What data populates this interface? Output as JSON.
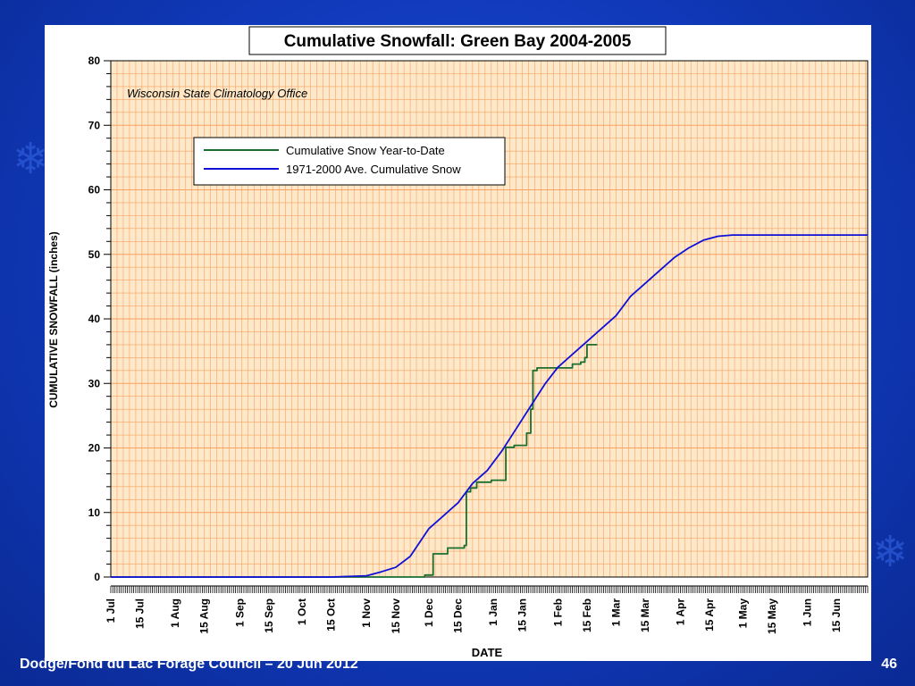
{
  "footer": {
    "text": "Dodge/Fond du Lac Forage Council – 20 Jun 2012",
    "page_number": "46"
  },
  "chart_data": {
    "type": "line",
    "title": "Cumulative Snowfall: Green Bay 2004-2005",
    "subtitle": "Wisconsin State Climatology Office",
    "xlabel": "DATE",
    "ylabel": "CUMULATIVE SNOWFALL (inches)",
    "ylim": [
      0,
      80
    ],
    "yticks": [
      0,
      10,
      20,
      30,
      40,
      50,
      60,
      70,
      80
    ],
    "xlim": [
      "2004-07-01",
      "2005-06-30"
    ],
    "xtick_dates": [
      "2004-07-01",
      "2004-07-15",
      "2004-08-01",
      "2004-08-15",
      "2004-09-01",
      "2004-09-15",
      "2004-10-01",
      "2004-10-15",
      "2004-11-01",
      "2004-11-15",
      "2004-12-01",
      "2004-12-15",
      "2005-01-01",
      "2005-01-15",
      "2005-02-01",
      "2005-02-15",
      "2005-03-01",
      "2005-03-15",
      "2005-04-01",
      "2005-04-15",
      "2005-05-01",
      "2005-05-15",
      "2005-06-01",
      "2005-06-15"
    ],
    "xtick_labels": [
      "1 Jul",
      "15 Jul",
      "1 Aug",
      "15 Aug",
      "1 Sep",
      "15 Sep",
      "1 Oct",
      "15 Oct",
      "1 Nov",
      "15 Nov",
      "1 Dec",
      "15 Dec",
      "1 Jan",
      "15 Jan",
      "1 Feb",
      "15 Feb",
      "1 Mar",
      "15 Mar",
      "1 Apr",
      "15 Apr",
      "1 May",
      "15 May",
      "1 Jun",
      "15 Jun"
    ],
    "grid": true,
    "legend_position": "upper-left",
    "background_color": "#fde9c9",
    "grid_color": "#f7a060",
    "series": [
      {
        "name": "Cumulative Snow Year-to-Date",
        "color": "#1a6e2e",
        "step": true,
        "points": [
          [
            "2004-07-01",
            0
          ],
          [
            "2004-11-01",
            0
          ],
          [
            "2004-11-28",
            0
          ],
          [
            "2004-11-29",
            0.3
          ],
          [
            "2004-12-02",
            0.3
          ],
          [
            "2004-12-03",
            3.6
          ],
          [
            "2004-12-09",
            3.6
          ],
          [
            "2004-12-10",
            4.5
          ],
          [
            "2004-12-18",
            4.9
          ],
          [
            "2004-12-19",
            13.2
          ],
          [
            "2004-12-21",
            13.8
          ],
          [
            "2004-12-24",
            14.7
          ],
          [
            "2004-12-31",
            15.0
          ],
          [
            "2005-01-06",
            15.0
          ],
          [
            "2005-01-07",
            20.1
          ],
          [
            "2005-01-11",
            20.4
          ],
          [
            "2005-01-16",
            20.4
          ],
          [
            "2005-01-17",
            22.3
          ],
          [
            "2005-01-19",
            26.0
          ],
          [
            "2005-01-20",
            32.0
          ],
          [
            "2005-01-22",
            32.4
          ],
          [
            "2005-02-06",
            32.4
          ],
          [
            "2005-02-08",
            33.0
          ],
          [
            "2005-02-12",
            33.3
          ],
          [
            "2005-02-14",
            34.0
          ],
          [
            "2005-02-15",
            36.0
          ],
          [
            "2005-02-20",
            36.0
          ]
        ]
      },
      {
        "name": "1971-2000 Ave. Cumulative Snow",
        "color": "#1010d8",
        "step": false,
        "points": [
          [
            "2004-07-01",
            0
          ],
          [
            "2004-10-15",
            0
          ],
          [
            "2004-11-01",
            0.2
          ],
          [
            "2004-11-08",
            0.8
          ],
          [
            "2004-11-15",
            1.5
          ],
          [
            "2004-11-22",
            3.2
          ],
          [
            "2004-12-01",
            7.5
          ],
          [
            "2004-12-08",
            9.5
          ],
          [
            "2004-12-15",
            11.5
          ],
          [
            "2004-12-22",
            14.5
          ],
          [
            "2004-12-29",
            16.5
          ],
          [
            "2005-01-05",
            19.5
          ],
          [
            "2005-01-12",
            23.0
          ],
          [
            "2005-01-19",
            26.5
          ],
          [
            "2005-01-26",
            30.0
          ],
          [
            "2005-02-01",
            32.5
          ],
          [
            "2005-02-08",
            34.5
          ],
          [
            "2005-02-15",
            36.5
          ],
          [
            "2005-02-22",
            38.5
          ],
          [
            "2005-03-01",
            40.5
          ],
          [
            "2005-03-08",
            43.5
          ],
          [
            "2005-03-15",
            45.5
          ],
          [
            "2005-03-22",
            47.5
          ],
          [
            "2005-03-29",
            49.5
          ],
          [
            "2005-04-05",
            51.0
          ],
          [
            "2005-04-12",
            52.2
          ],
          [
            "2005-04-19",
            52.8
          ],
          [
            "2005-04-26",
            53.0
          ],
          [
            "2005-05-15",
            53.0
          ],
          [
            "2005-06-30",
            53.0
          ]
        ]
      }
    ]
  }
}
